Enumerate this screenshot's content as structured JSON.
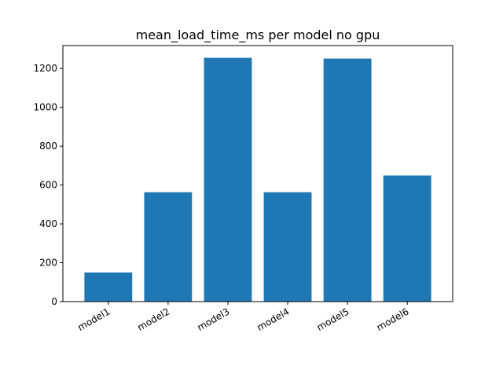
{
  "chart_data": {
    "type": "bar",
    "title": "mean_load_time_ms per model no gpu",
    "xlabel": "",
    "ylabel": "",
    "categories": [
      "model1",
      "model2",
      "model3",
      "model4",
      "model5",
      "model6"
    ],
    "values": [
      150,
      563,
      1255,
      563,
      1251,
      649
    ],
    "ylim": [
      0,
      1318
    ],
    "yticks": [
      0,
      200,
      400,
      600,
      800,
      1000,
      1200
    ],
    "grid": false,
    "legend": "none",
    "bar_color": "#1f77b4"
  }
}
